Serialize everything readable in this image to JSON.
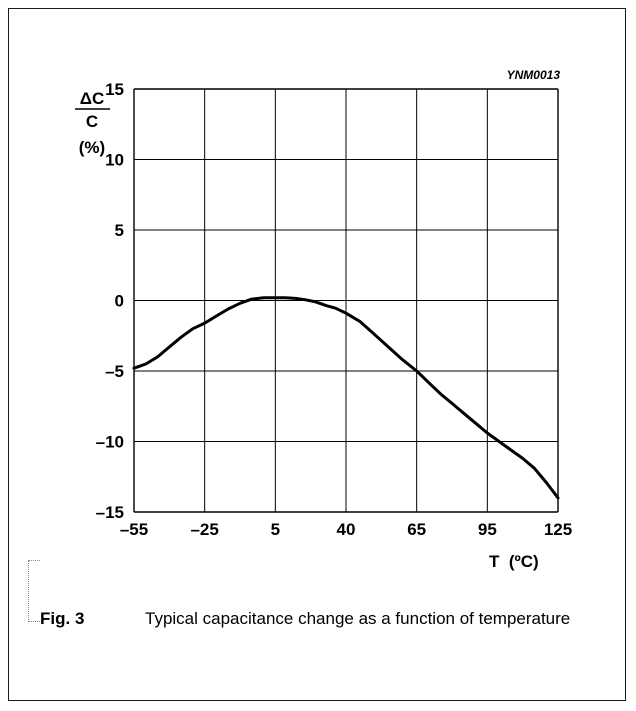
{
  "figure": {
    "code": "YNM0013",
    "fig_label": "Fig. 3",
    "caption": "Typical capacitance change as a function of temperature"
  },
  "chart_data": {
    "type": "line",
    "title": "",
    "xlabel": "T  (ºC)",
    "ylabel": [
      "ΔC",
      "C",
      "(%)"
    ],
    "xlim": [
      -55,
      125
    ],
    "ylim": [
      -15,
      15
    ],
    "x_ticks": [
      -55,
      -25,
      5,
      40,
      65,
      95,
      125
    ],
    "x_tick_labels": [
      "–55",
      "–25",
      "5",
      "40",
      "65",
      "95",
      "125"
    ],
    "y_ticks": [
      15,
      10,
      5,
      0,
      -5,
      -10,
      -15
    ],
    "y_tick_labels": [
      "15",
      "10",
      "5",
      "0",
      "–5",
      "–10",
      "–15"
    ],
    "grid": true,
    "series": [
      {
        "x": [
          -55,
          -50,
          -45,
          -40,
          -35,
          -30,
          -25,
          -20,
          -15,
          -10,
          -5,
          0,
          5,
          10,
          15,
          20,
          25,
          30,
          35,
          40,
          45,
          50,
          55,
          60,
          65,
          70,
          75,
          80,
          85,
          90,
          95,
          100,
          105,
          110,
          115,
          120,
          125
        ],
        "y": [
          -4.8,
          -4.5,
          -4.0,
          -3.3,
          -2.6,
          -2.0,
          -1.6,
          -1.1,
          -0.6,
          -0.2,
          0.1,
          0.2,
          0.2,
          0.2,
          0.15,
          0.05,
          -0.1,
          -0.35,
          -0.55,
          -0.9,
          -1.5,
          -2.4,
          -3.3,
          -4.2,
          -5.0,
          -5.8,
          -6.6,
          -7.3,
          -8.0,
          -8.7,
          -9.4,
          -10.0,
          -10.6,
          -11.2,
          -11.9,
          -12.9,
          -14.0
        ]
      }
    ]
  }
}
